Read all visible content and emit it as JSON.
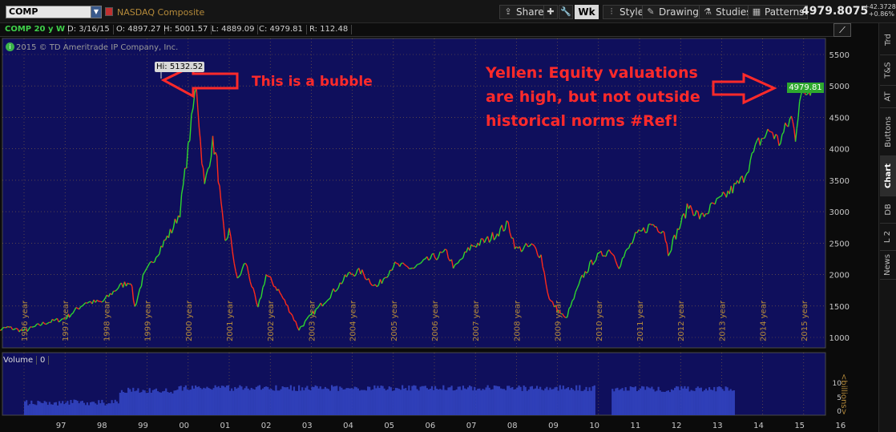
{
  "toolbar": {
    "symbol": "COMP",
    "description": "NASDAQ Composite",
    "share": "Share",
    "timeframe": "Wk",
    "style": "Style",
    "drawings": "Drawings",
    "studies": "Studies",
    "patterns": "Patterns",
    "last": "4979.8075",
    "net_change": "+42.3728",
    "pct_change": "+0.86%"
  },
  "info": {
    "symbol_period": "COMP 20 y W",
    "date": "D: 3/16/15",
    "open": "O: 4897.27",
    "high": "H: 5001.57",
    "low": "L: 4889.09",
    "close": "C: 4979.81",
    "range": "R: 112.48"
  },
  "copyright": "2015 © TD Ameritrade IP Company, Inc.",
  "annotations": {
    "bubble": "This is a bubble",
    "yellen": "Yellen: Equity valuations are high, but not outside historical norms #Ref!",
    "hi_label": "Hi: 5132.52",
    "price_tag": "4979.81"
  },
  "right_tabs": [
    "Trd",
    "T&S",
    "AT",
    "Buttons",
    "Chart",
    "DB",
    "L 2",
    "News"
  ],
  "volume": {
    "label": "Volume",
    "value": "0",
    "unit": "<billions>"
  },
  "colors": {
    "up": "#2ed82e",
    "down": "#ff2a1a",
    "plot_bg": "#0f0f5c",
    "grid": "#b58a3a",
    "annotation": "#ff2a2a",
    "volume": "#2f3fb8"
  },
  "chart_data": {
    "type": "line",
    "title": "NASDAQ Composite",
    "ylim": [
      900,
      5600
    ],
    "yticks": [
      1000,
      1500,
      2000,
      2500,
      3000,
      3500,
      4000,
      4500,
      5000,
      5500
    ],
    "year_labels": [
      "1996 year",
      "1997 year",
      "1998 year",
      "1999 year",
      "2000 year",
      "2001 year",
      "2002 year",
      "2003 year",
      "2004 year",
      "2005 year",
      "2006 year",
      "2007 year",
      "2008 year",
      "2009 year",
      "2010 year",
      "2011 year",
      "2012 year",
      "2013 year",
      "2014 year",
      "2015 year"
    ],
    "x_short_labels": [
      "97",
      "98",
      "99",
      "00",
      "01",
      "02",
      "03",
      "04",
      "05",
      "06",
      "07",
      "08",
      "09",
      "10",
      "11",
      "12",
      "13",
      "14",
      "15",
      "16"
    ],
    "points": [
      [
        1995.2,
        1070
      ],
      [
        1995.6,
        1160
      ],
      [
        1996.0,
        1100
      ],
      [
        1996.5,
        1230
      ],
      [
        1997.0,
        1300
      ],
      [
        1997.5,
        1560
      ],
      [
        1997.9,
        1560
      ],
      [
        1998.3,
        1800
      ],
      [
        1998.6,
        1900
      ],
      [
        1998.7,
        1480
      ],
      [
        1998.9,
        1950
      ],
      [
        1999.3,
        2400
      ],
      [
        1999.6,
        2700
      ],
      [
        1999.8,
        3000
      ],
      [
        2000.0,
        4000
      ],
      [
        2000.2,
        5048
      ],
      [
        2000.3,
        4100
      ],
      [
        2000.4,
        3400
      ],
      [
        2000.6,
        4100
      ],
      [
        2000.7,
        3800
      ],
      [
        2000.8,
        3100
      ],
      [
        2000.9,
        2500
      ],
      [
        2001.0,
        2700
      ],
      [
        2001.2,
        1900
      ],
      [
        2001.4,
        2200
      ],
      [
        2001.7,
        1450
      ],
      [
        2001.9,
        2000
      ],
      [
        2002.2,
        1750
      ],
      [
        2002.5,
        1400
      ],
      [
        2002.7,
        1130
      ],
      [
        2003.0,
        1350
      ],
      [
        2003.5,
        1700
      ],
      [
        2003.9,
        2000
      ],
      [
        2004.2,
        2050
      ],
      [
        2004.6,
        1800
      ],
      [
        2005.0,
        2150
      ],
      [
        2005.5,
        2100
      ],
      [
        2005.9,
        2250
      ],
      [
        2006.3,
        2350
      ],
      [
        2006.5,
        2100
      ],
      [
        2006.9,
        2450
      ],
      [
        2007.3,
        2550
      ],
      [
        2007.8,
        2800
      ],
      [
        2008.0,
        2400
      ],
      [
        2008.4,
        2450
      ],
      [
        2008.6,
        2300
      ],
      [
        2008.8,
        1600
      ],
      [
        2009.2,
        1290
      ],
      [
        2009.6,
        1950
      ],
      [
        2009.9,
        2250
      ],
      [
        2010.3,
        2400
      ],
      [
        2010.5,
        2150
      ],
      [
        2010.9,
        2600
      ],
      [
        2011.3,
        2800
      ],
      [
        2011.6,
        2700
      ],
      [
        2011.7,
        2350
      ],
      [
        2012.0,
        2800
      ],
      [
        2012.2,
        3100
      ],
      [
        2012.5,
        2900
      ],
      [
        2012.8,
        3100
      ],
      [
        2013.0,
        3200
      ],
      [
        2013.5,
        3500
      ],
      [
        2013.9,
        4100
      ],
      [
        2014.2,
        4300
      ],
      [
        2014.4,
        4100
      ],
      [
        2014.7,
        4500
      ],
      [
        2014.8,
        4200
      ],
      [
        2014.9,
        4800
      ],
      [
        2015.2,
        4980
      ]
    ]
  }
}
